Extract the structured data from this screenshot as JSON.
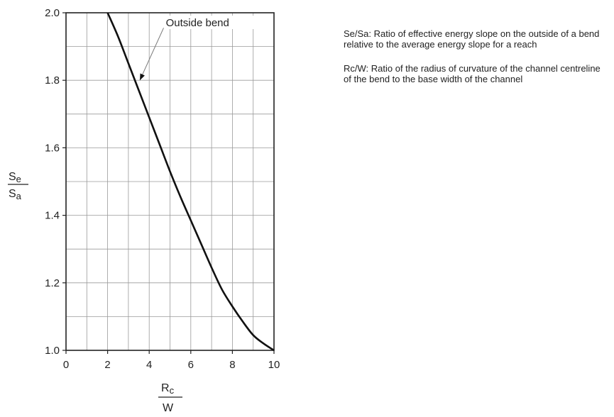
{
  "chart_data": {
    "type": "line",
    "title": "",
    "x_axis": {
      "label_numerator": "R",
      "label_numerator_sub": "c",
      "label_denominator": "W",
      "range": [
        0,
        10
      ],
      "ticks": [
        0,
        2,
        4,
        6,
        8,
        10
      ],
      "minor_gridlines": [
        1,
        2,
        3,
        4,
        5,
        6,
        7,
        8,
        9
      ]
    },
    "y_axis": {
      "label_numerator": "S",
      "label_numerator_sub": "e",
      "label_denominator": "S",
      "label_denominator_sub": "a",
      "range": [
        1.0,
        2.0
      ],
      "ticks": [
        "1.0",
        "1.2",
        "1.4",
        "1.6",
        "1.8",
        "2.0"
      ],
      "tick_values": [
        1.0,
        1.2,
        1.4,
        1.6,
        1.8,
        2.0
      ],
      "minor_gridlines": [
        1.1,
        1.3,
        1.5,
        1.7,
        1.9
      ]
    },
    "grid": true,
    "series": [
      {
        "name": "Outside bend",
        "x": [
          2.0,
          2.5,
          3.0,
          3.5,
          4.0,
          4.5,
          5.0,
          5.5,
          6.0,
          6.5,
          7.0,
          7.5,
          8.0,
          8.5,
          9.0,
          9.5,
          10.0
        ],
        "y": [
          2.0,
          1.93,
          1.85,
          1.77,
          1.69,
          1.61,
          1.53,
          1.455,
          1.385,
          1.315,
          1.245,
          1.18,
          1.13,
          1.085,
          1.045,
          1.02,
          1.0
        ]
      }
    ],
    "annotations": [
      {
        "text": "Outside bend",
        "points_to_x": 3.55,
        "points_to_y": 1.8
      }
    ]
  },
  "notes": [
    "Se/Sa: Ratio of effective energy slope on the outside of a bend relative to the average energy slope for a reach",
    "Rc/W: Ratio of the radius of curvature of the channel centreline of the bend to the base width of the channel"
  ]
}
